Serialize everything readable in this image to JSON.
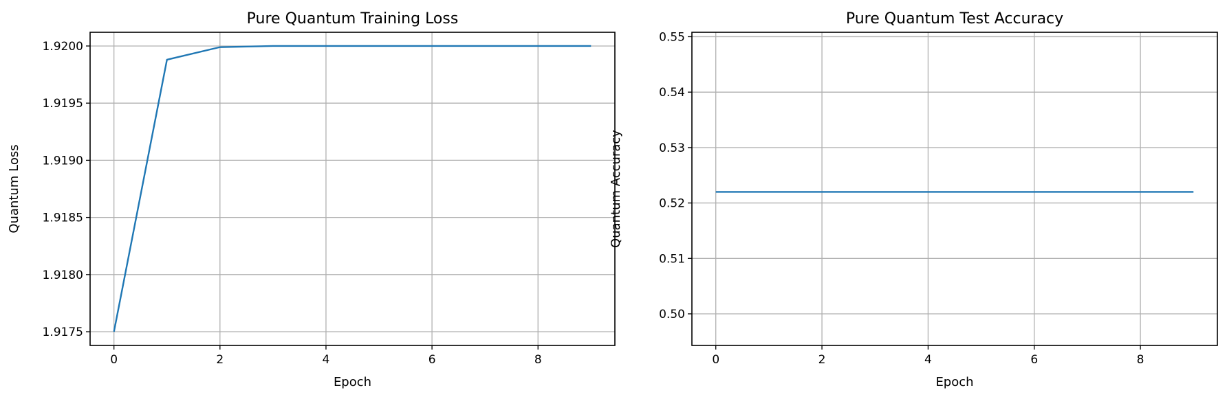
{
  "chart_data": [
    {
      "type": "line",
      "title": "Pure Quantum Training Loss",
      "xlabel": "Epoch",
      "ylabel": "Quantum Loss",
      "xlim": [
        -0.45,
        9.45
      ],
      "ylim": [
        1.91738,
        1.92012
      ],
      "xticks": [
        0,
        2,
        4,
        6,
        8
      ],
      "yticks": [
        1.9175,
        1.918,
        1.9185,
        1.919,
        1.9195,
        1.92
      ],
      "ytick_labels": [
        "1.9175",
        "1.9180",
        "1.9185",
        "1.9190",
        "1.9195",
        "1.9200"
      ],
      "grid": true,
      "series": [
        {
          "color": "#1f77b4",
          "x": [
            0,
            1,
            2,
            3,
            4,
            5,
            6,
            7,
            8,
            9
          ],
          "values": [
            1.9175,
            1.91988,
            1.91999,
            1.92,
            1.92,
            1.92,
            1.92,
            1.92,
            1.92,
            1.92
          ]
        }
      ]
    },
    {
      "type": "line",
      "title": "Pure Quantum Test Accuracy",
      "xlabel": "Epoch",
      "ylabel": "Quantum Accuracy",
      "xlim": [
        -0.45,
        9.45
      ],
      "ylim": [
        0.4943,
        0.5508
      ],
      "xticks": [
        0,
        2,
        4,
        6,
        8
      ],
      "yticks": [
        0.5,
        0.51,
        0.52,
        0.53,
        0.54,
        0.55
      ],
      "ytick_labels": [
        "0.50",
        "0.51",
        "0.52",
        "0.53",
        "0.54",
        "0.55"
      ],
      "grid": true,
      "series": [
        {
          "color": "#1f77b4",
          "x": [
            0,
            1,
            2,
            3,
            4,
            5,
            6,
            7,
            8,
            9
          ],
          "values": [
            0.522,
            0.522,
            0.522,
            0.522,
            0.522,
            0.522,
            0.522,
            0.522,
            0.522,
            0.522
          ]
        }
      ]
    }
  ]
}
